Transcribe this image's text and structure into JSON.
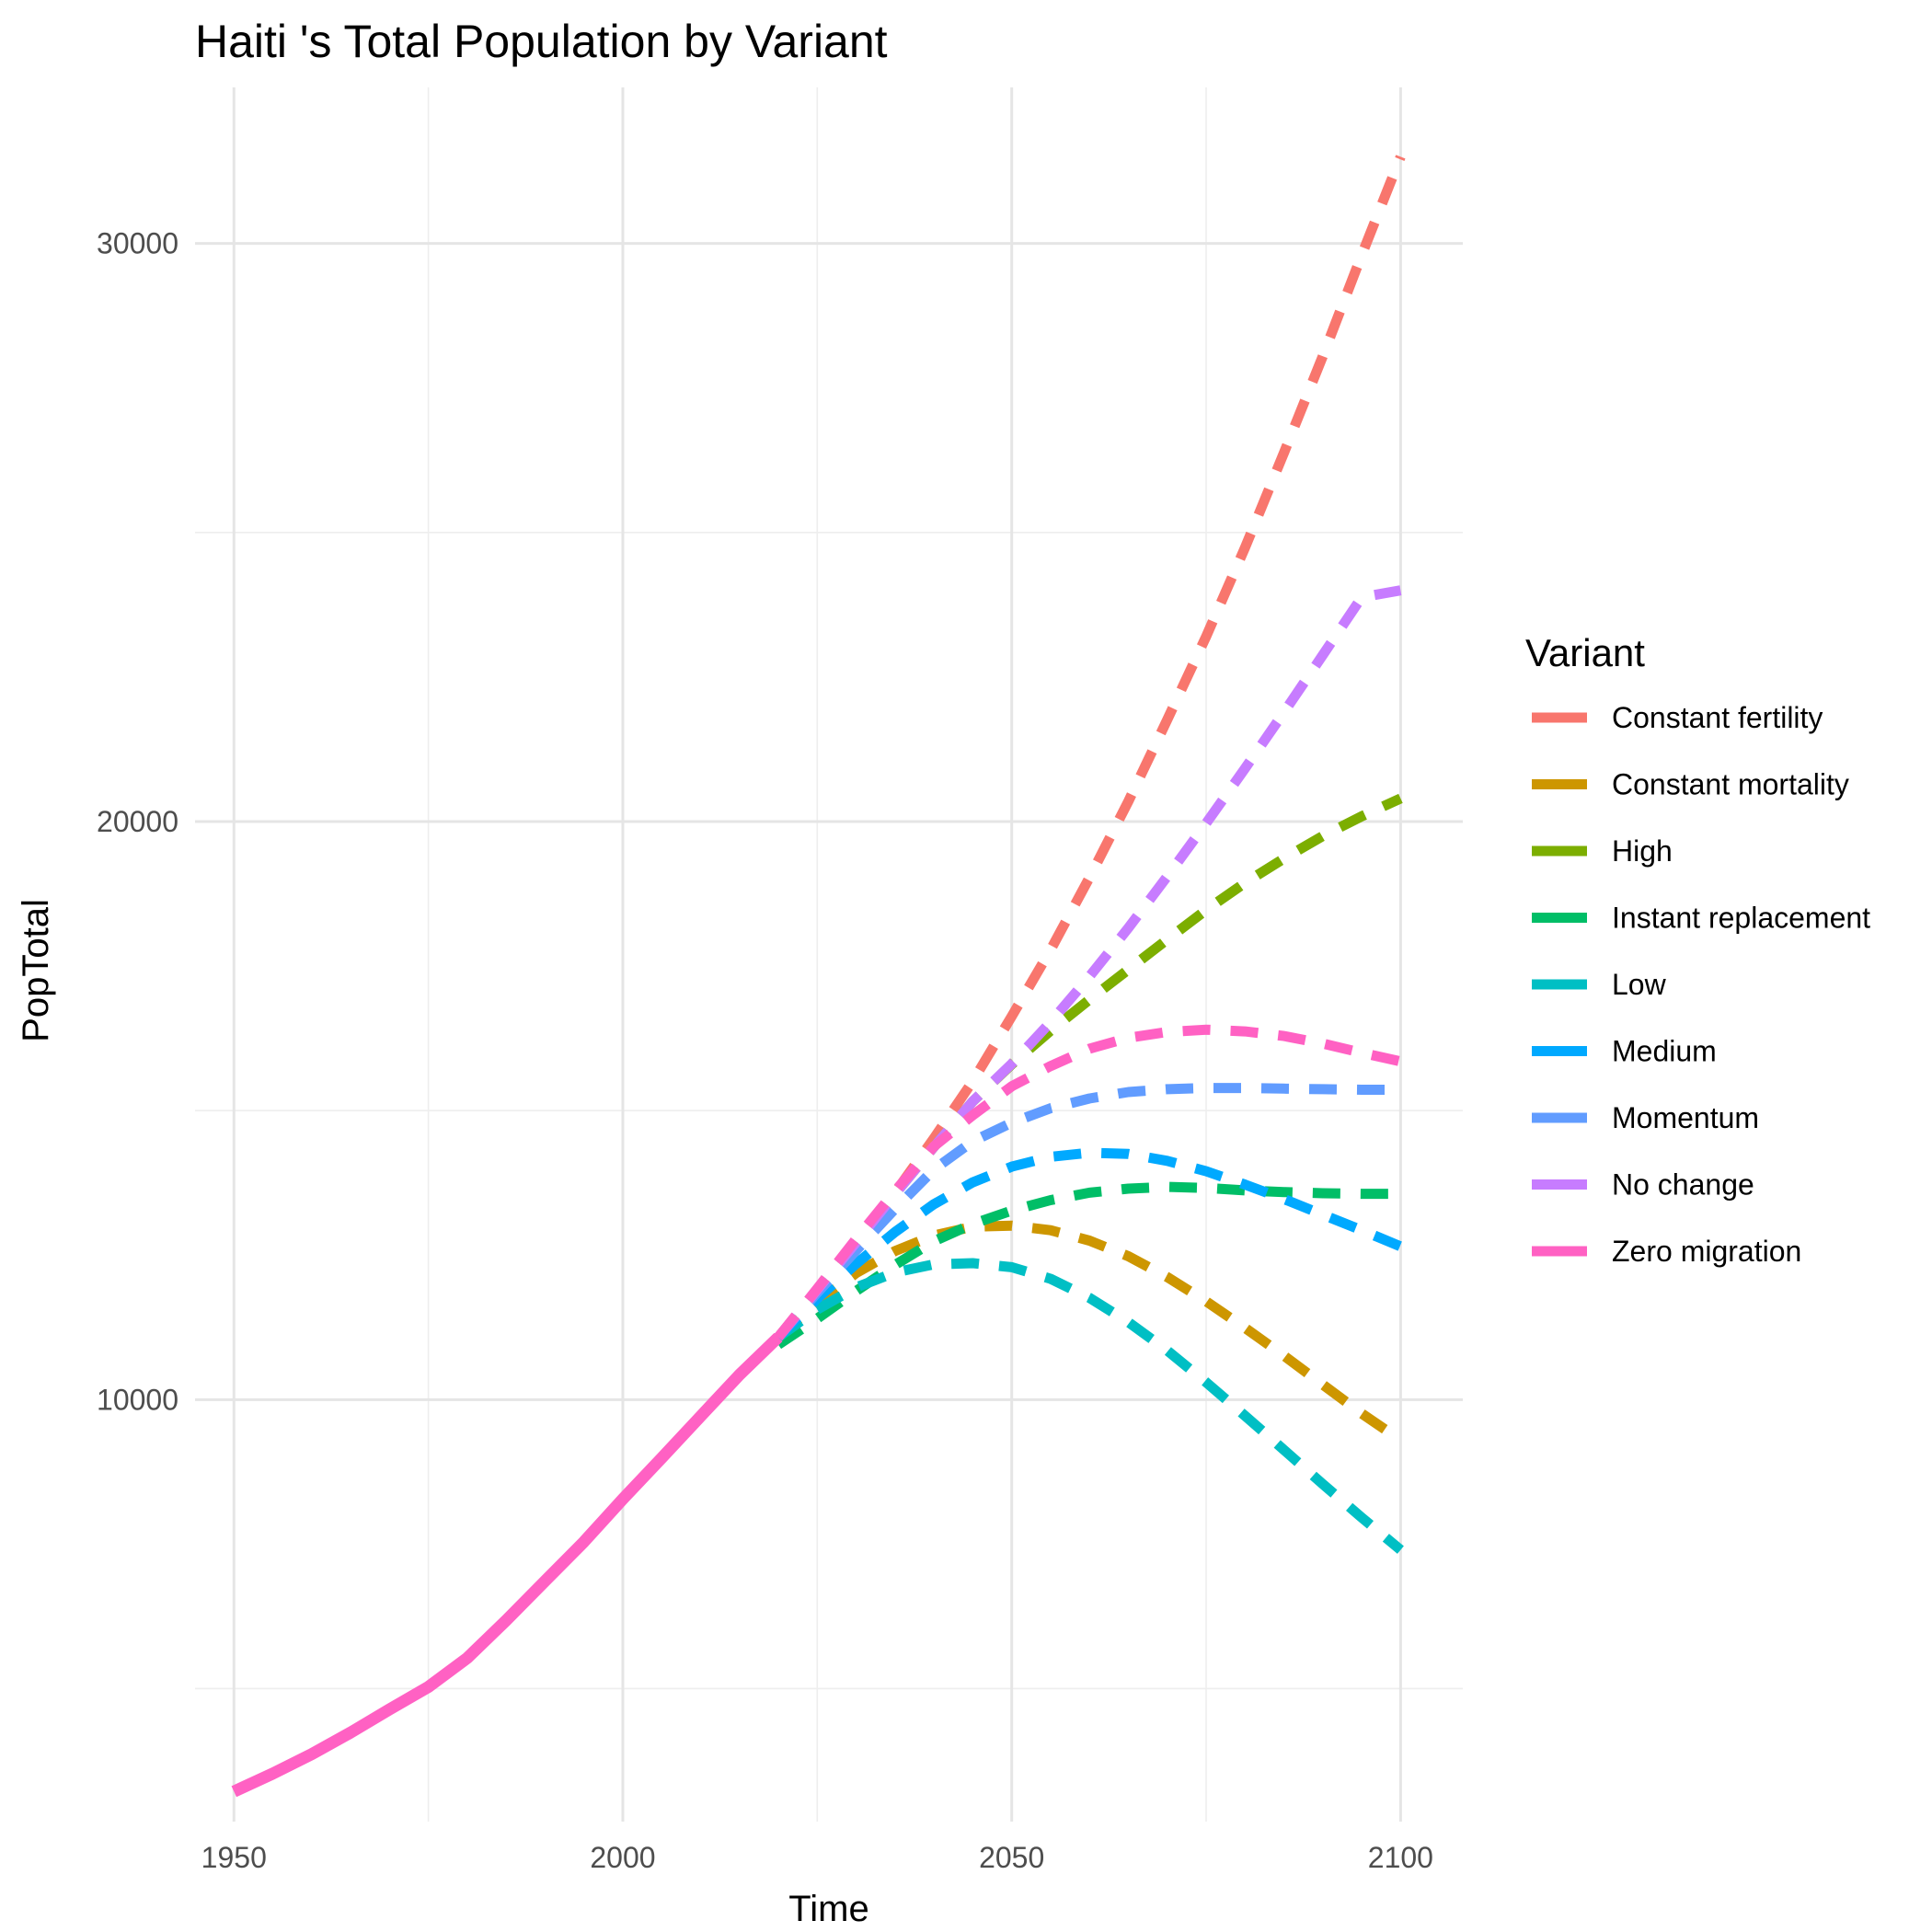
{
  "chart_data": {
    "type": "line",
    "title": "Haiti 's Total Population by Variant",
    "xlabel": "Time",
    "ylabel": "PopTotal",
    "xlim": [
      1945,
      2108
    ],
    "ylim": [
      2700,
      32700
    ],
    "x_ticks": [
      1950,
      2000,
      2050,
      2100
    ],
    "y_ticks": [
      10000,
      20000,
      30000
    ],
    "grid": true,
    "legend": {
      "title": "Variant",
      "position": "right"
    },
    "historical": {
      "x": [
        1950,
        1955,
        1960,
        1965,
        1970,
        1975,
        1980,
        1985,
        1990,
        1995,
        2000,
        2005,
        2010,
        2015,
        2020
      ],
      "values": [
        3221,
        3530,
        3867,
        4240,
        4640,
        5030,
        5530,
        6180,
        6860,
        7540,
        8280,
        8990,
        9710,
        10430,
        11080
      ]
    },
    "series": [
      {
        "name": "Constant fertility",
        "color": "#F8766D",
        "x": [
          2020,
          2025,
          2030,
          2035,
          2040,
          2045,
          2050,
          2055,
          2060,
          2065,
          2070,
          2075,
          2080,
          2085,
          2090,
          2095,
          2100
        ],
        "values": [
          11080,
          11900,
          12720,
          13580,
          14520,
          15510,
          16630,
          17780,
          19030,
          20350,
          21760,
          23200,
          24740,
          26380,
          28050,
          29800,
          31500
        ]
      },
      {
        "name": "Constant mortality",
        "color": "#CD9600",
        "x": [
          2020,
          2025,
          2030,
          2035,
          2040,
          2045,
          2050,
          2055,
          2060,
          2065,
          2070,
          2075,
          2080,
          2085,
          2090,
          2095,
          2100
        ],
        "values": [
          11080,
          11680,
          12190,
          12570,
          12840,
          12990,
          13010,
          12930,
          12750,
          12480,
          12120,
          11700,
          11240,
          10760,
          10260,
          9760,
          9300
        ]
      },
      {
        "name": "High",
        "color": "#7CAE00",
        "x": [
          2020,
          2025,
          2030,
          2035,
          2040,
          2045,
          2050,
          2055,
          2060,
          2065,
          2070,
          2075,
          2080,
          2085,
          2090,
          2095,
          2100
        ],
        "values": [
          11080,
          11900,
          12720,
          13560,
          14370,
          15160,
          15800,
          16380,
          16920,
          17440,
          17960,
          18470,
          18940,
          19360,
          19750,
          20090,
          20400
        ]
      },
      {
        "name": "Instant replacement",
        "color": "#00BE67",
        "x": [
          2020,
          2025,
          2030,
          2035,
          2040,
          2045,
          2050,
          2055,
          2060,
          2065,
          2070,
          2075,
          2080,
          2085,
          2090,
          2095,
          2100
        ],
        "values": [
          10950,
          11400,
          11880,
          12330,
          12740,
          13040,
          13270,
          13450,
          13580,
          13650,
          13680,
          13660,
          13620,
          13590,
          13570,
          13560,
          13560
        ]
      },
      {
        "name": "Low",
        "color": "#00BFC4",
        "x": [
          2020,
          2025,
          2030,
          2035,
          2040,
          2045,
          2050,
          2055,
          2060,
          2065,
          2070,
          2075,
          2080,
          2085,
          2090,
          2095,
          2100
        ],
        "values": [
          11080,
          11560,
          11940,
          12200,
          12340,
          12360,
          12290,
          12090,
          11760,
          11340,
          10850,
          10300,
          9720,
          9130,
          8540,
          7960,
          7400
        ]
      },
      {
        "name": "Medium",
        "color": "#00A9FF",
        "x": [
          2020,
          2025,
          2030,
          2035,
          2040,
          2045,
          2050,
          2055,
          2060,
          2065,
          2070,
          2075,
          2080,
          2085,
          2090,
          2095,
          2100
        ],
        "values": [
          11080,
          11750,
          12350,
          12900,
          13380,
          13760,
          14030,
          14200,
          14270,
          14250,
          14130,
          13950,
          13720,
          13470,
          13200,
          12930,
          12650
        ]
      },
      {
        "name": "Momentum",
        "color": "#619CFF",
        "x": [
          2020,
          2025,
          2030,
          2035,
          2040,
          2045,
          2050,
          2055,
          2060,
          2065,
          2070,
          2075,
          2080,
          2085,
          2090,
          2095,
          2100
        ],
        "values": [
          11080,
          11850,
          12580,
          13300,
          13980,
          14470,
          14790,
          15040,
          15210,
          15320,
          15370,
          15390,
          15390,
          15380,
          15370,
          15360,
          15360
        ]
      },
      {
        "name": "No change",
        "color": "#C77CFF",
        "x": [
          2020,
          2025,
          2030,
          2035,
          2040,
          2045,
          2050,
          2055,
          2060,
          2065,
          2070,
          2075,
          2080,
          2085,
          2090,
          2095,
          2100
        ],
        "values": [
          11080,
          11900,
          12720,
          13560,
          14370,
          15160,
          15810,
          16530,
          17320,
          18160,
          19050,
          19970,
          20920,
          21890,
          22880,
          23880,
          24000
        ]
      },
      {
        "name": "Zero migration",
        "color": "#FF61C3",
        "x": [
          2020,
          2025,
          2030,
          2035,
          2040,
          2045,
          2050,
          2055,
          2060,
          2065,
          2070,
          2075,
          2080,
          2085,
          2090,
          2095,
          2100
        ],
        "values": [
          11080,
          11920,
          12780,
          13610,
          14380,
          14920,
          15420,
          15770,
          16070,
          16260,
          16360,
          16400,
          16370,
          16290,
          16160,
          16000,
          15850
        ]
      }
    ]
  }
}
